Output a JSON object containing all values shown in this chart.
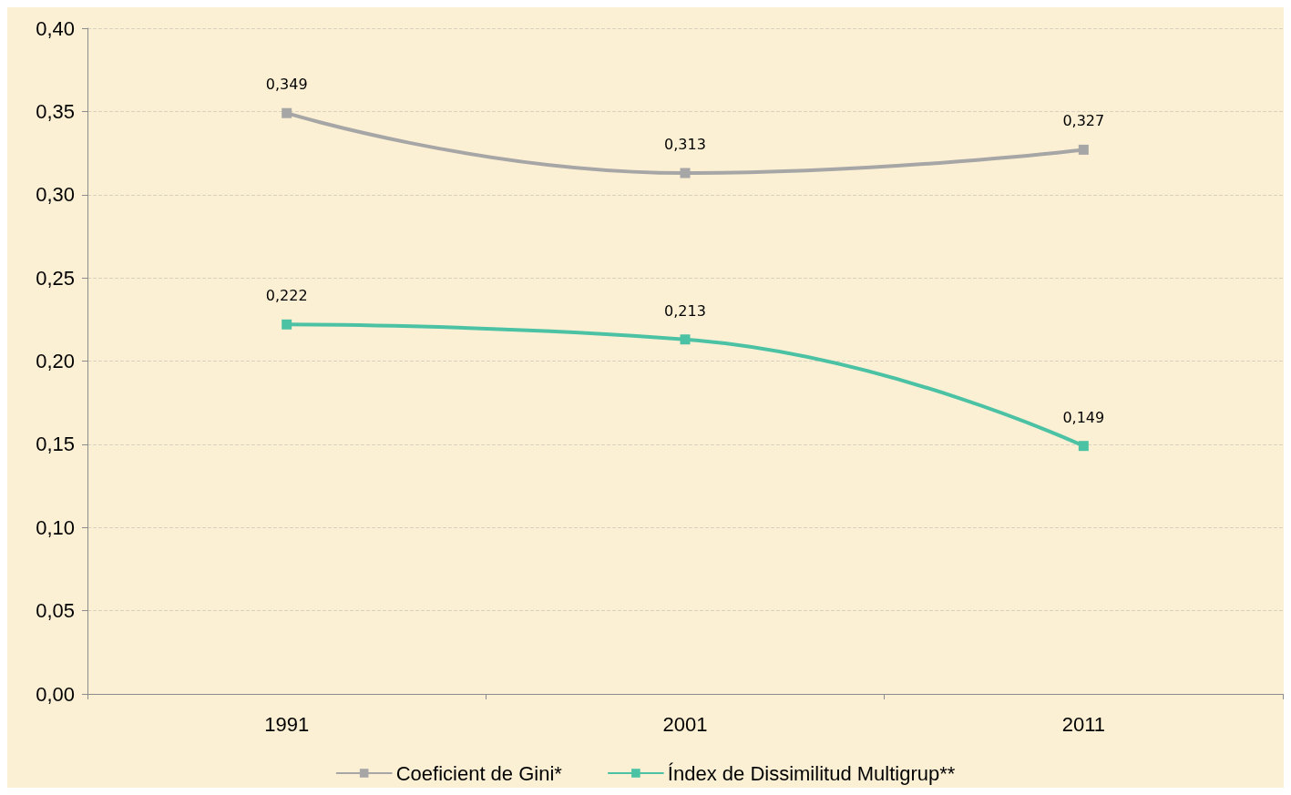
{
  "chart_data": {
    "type": "line",
    "categories": [
      "1991",
      "2001",
      "2011"
    ],
    "series": [
      {
        "name": "Coeficient de Gini*",
        "color": "#a6a6a6",
        "values": [
          0.349,
          0.313,
          0.327
        ],
        "value_labels": [
          "0,349",
          "0,313",
          "0,327"
        ]
      },
      {
        "name": "Índex de Dissimilitud Multigrup**",
        "color": "#4cc2a4",
        "values": [
          0.222,
          0.213,
          0.149
        ],
        "value_labels": [
          "0,222",
          "0,213",
          "0,149"
        ]
      }
    ],
    "ylim": [
      0,
      0.4
    ],
    "yticks": [
      {
        "value": 0,
        "label": "0,00"
      },
      {
        "value": 0.05,
        "label": "0,05"
      },
      {
        "value": 0.1,
        "label": "0,10"
      },
      {
        "value": 0.15,
        "label": "0,15"
      },
      {
        "value": 0.2,
        "label": "0,20"
      },
      {
        "value": 0.25,
        "label": "0,25"
      },
      {
        "value": 0.3,
        "label": "0,30"
      },
      {
        "value": 0.35,
        "label": "0,35"
      },
      {
        "value": 0.4,
        "label": "0,40"
      }
    ],
    "grid": "y",
    "legend": "bottom",
    "marker": "square",
    "line_style": "solid"
  }
}
